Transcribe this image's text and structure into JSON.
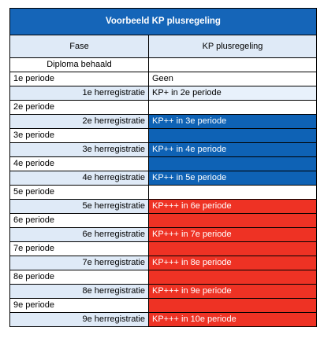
{
  "title": "Voorbeeld KP plusregeling",
  "headers": {
    "fase": "Fase",
    "kp": "KP plusregeling"
  },
  "colors": {
    "title_bg": "#1565b8",
    "header_bg": "#dfeaf7",
    "blue": "#0e62b5",
    "red": "#ee3224",
    "light": "#e8f1fb"
  },
  "rows": [
    {
      "fase": "Diploma behaald",
      "kp": "",
      "align": "center",
      "shade": false,
      "style": "white"
    },
    {
      "fase": "1e periode",
      "kp": "Geen",
      "align": "left",
      "shade": false,
      "style": "white"
    },
    {
      "fase": "1e herregistratie",
      "kp": "KP+ in 2e periode",
      "align": "right",
      "shade": true,
      "style": "lightblue"
    },
    {
      "fase": "2e periode",
      "kp": "",
      "align": "left",
      "shade": false,
      "style": "white"
    },
    {
      "fase": "2e herregistratie",
      "kp": "KP++ in 3e periode",
      "align": "right",
      "shade": true,
      "style": "blue"
    },
    {
      "fase": "3e periode",
      "kp": "",
      "align": "left",
      "shade": false,
      "style": "blue"
    },
    {
      "fase": "3e herregistratie",
      "kp": "KP++ in 4e periode",
      "align": "right",
      "shade": true,
      "style": "blue"
    },
    {
      "fase": "4e periode",
      "kp": "",
      "align": "left",
      "shade": false,
      "style": "blue"
    },
    {
      "fase": "4e herregistratie",
      "kp": "KP++ in 5e periode",
      "align": "right",
      "shade": true,
      "style": "blue"
    },
    {
      "fase": "5e periode",
      "kp": "",
      "align": "left",
      "shade": false,
      "style": "white"
    },
    {
      "fase": "5e herregistratie",
      "kp": "KP+++ in 6e periode",
      "align": "right",
      "shade": true,
      "style": "red"
    },
    {
      "fase": "6e periode",
      "kp": "",
      "align": "left",
      "shade": false,
      "style": "red"
    },
    {
      "fase": "6e herregistratie",
      "kp": "KP+++ in 7e periode",
      "align": "right",
      "shade": true,
      "style": "red"
    },
    {
      "fase": "7e periode",
      "kp": "",
      "align": "left",
      "shade": false,
      "style": "red"
    },
    {
      "fase": "7e herregistratie",
      "kp": "KP+++ in 8e periode",
      "align": "right",
      "shade": true,
      "style": "red"
    },
    {
      "fase": "8e periode",
      "kp": "",
      "align": "left",
      "shade": false,
      "style": "red"
    },
    {
      "fase": "8e herregistratie",
      "kp": "KP+++ in 9e periode",
      "align": "right",
      "shade": true,
      "style": "red"
    },
    {
      "fase": "9e periode",
      "kp": "",
      "align": "left",
      "shade": false,
      "style": "red"
    },
    {
      "fase": "9e herregistratie",
      "kp": "KP+++ in 10e periode",
      "align": "right",
      "shade": true,
      "style": "red"
    }
  ]
}
